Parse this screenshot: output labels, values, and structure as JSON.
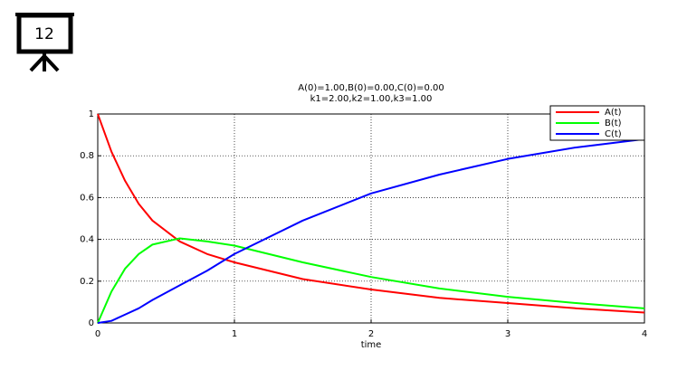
{
  "slide_number": "12",
  "chart_data": {
    "type": "line",
    "title": "A(0)=1.00,B(0)=0.00,C(0)=0.00",
    "subtitle": "k1=2.00,k2=1.00,k3=1.00",
    "x_label": "time",
    "x": [
      0,
      0.1,
      0.2,
      0.3,
      0.4,
      0.6,
      0.8,
      1,
      1.5,
      2,
      2.5,
      3,
      3.5,
      4
    ],
    "series": [
      {
        "name": "A(t)",
        "color": "#ff0000",
        "values": [
          1,
          0.82,
          0.68,
          0.57,
          0.49,
          0.39,
          0.33,
          0.29,
          0.21,
          0.16,
          0.12,
          0.095,
          0.07,
          0.05
        ]
      },
      {
        "name": "B(t)",
        "color": "#00ff00",
        "values": [
          0,
          0.15,
          0.26,
          0.33,
          0.375,
          0.405,
          0.39,
          0.37,
          0.29,
          0.22,
          0.165,
          0.125,
          0.095,
          0.07
        ]
      },
      {
        "name": "C(t)",
        "color": "#0000ff",
        "values": [
          0,
          0.01,
          0.04,
          0.07,
          0.11,
          0.18,
          0.25,
          0.33,
          0.49,
          0.62,
          0.71,
          0.785,
          0.84,
          0.88
        ]
      }
    ],
    "xlim": [
      0,
      4
    ],
    "xticks": [
      0,
      1,
      2,
      3,
      4
    ],
    "ylim": [
      0,
      1
    ],
    "yticks": [
      0,
      0.2,
      0.4,
      0.6,
      0.8,
      1
    ],
    "grid": true,
    "legend": "upper right"
  }
}
